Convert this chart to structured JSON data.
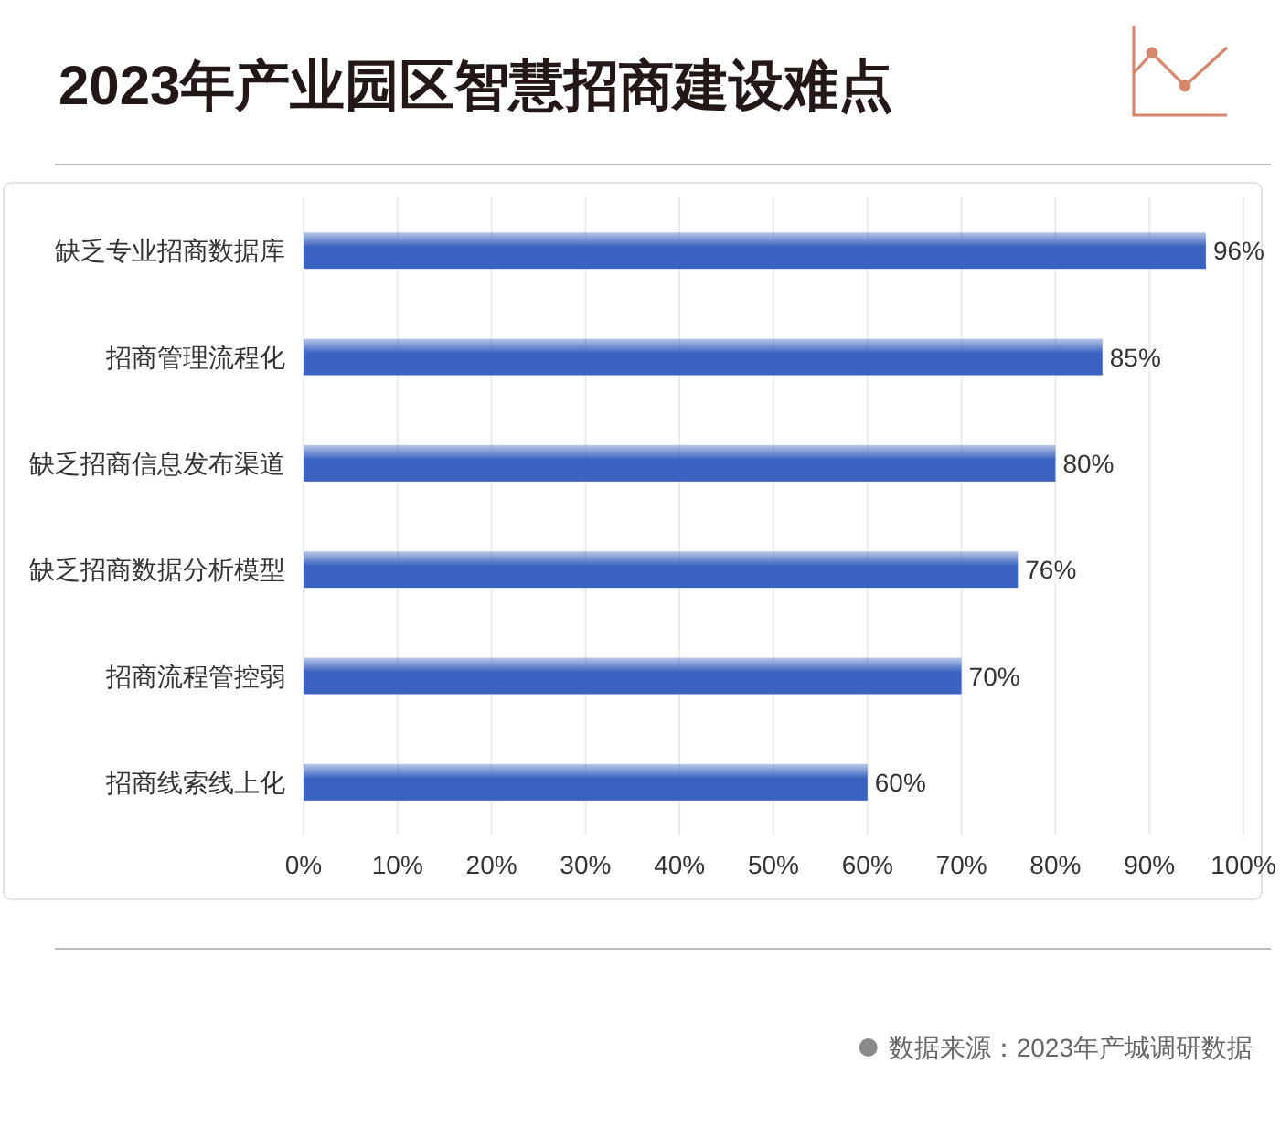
{
  "chart_data": {
    "type": "bar",
    "orientation": "horizontal",
    "title": "2023年产业园区智慧招商建设难点",
    "categories": [
      "缺乏专业招商数据库",
      "招商管理流程化",
      "缺乏招商信息发布渠道",
      "缺乏招商数据分析模型",
      "招商流程管控弱",
      "招商线索线上化"
    ],
    "values": [
      96,
      85,
      80,
      76,
      70,
      60
    ],
    "color": "#3a62c0",
    "value_labels": [
      "96%",
      "85%",
      "80%",
      "76%",
      "70%",
      "60%"
    ],
    "xlim": [
      0,
      100
    ],
    "xticks": [
      {
        "value": 0,
        "label": "0%"
      },
      {
        "value": 10,
        "label": "10%"
      },
      {
        "value": 20,
        "label": "20%"
      },
      {
        "value": 30,
        "label": "30%"
      },
      {
        "value": 40,
        "label": "40%"
      },
      {
        "value": 50,
        "label": "50%"
      },
      {
        "value": 60,
        "label": "60%"
      },
      {
        "value": 70,
        "label": "70%"
      },
      {
        "value": 80,
        "label": "80%"
      },
      {
        "value": 90,
        "label": "90%"
      },
      {
        "value": 100,
        "label": "100%"
      }
    ],
    "grid": "x",
    "annotations": [
      "数据来源：2023年产城调研数据"
    ]
  }
}
